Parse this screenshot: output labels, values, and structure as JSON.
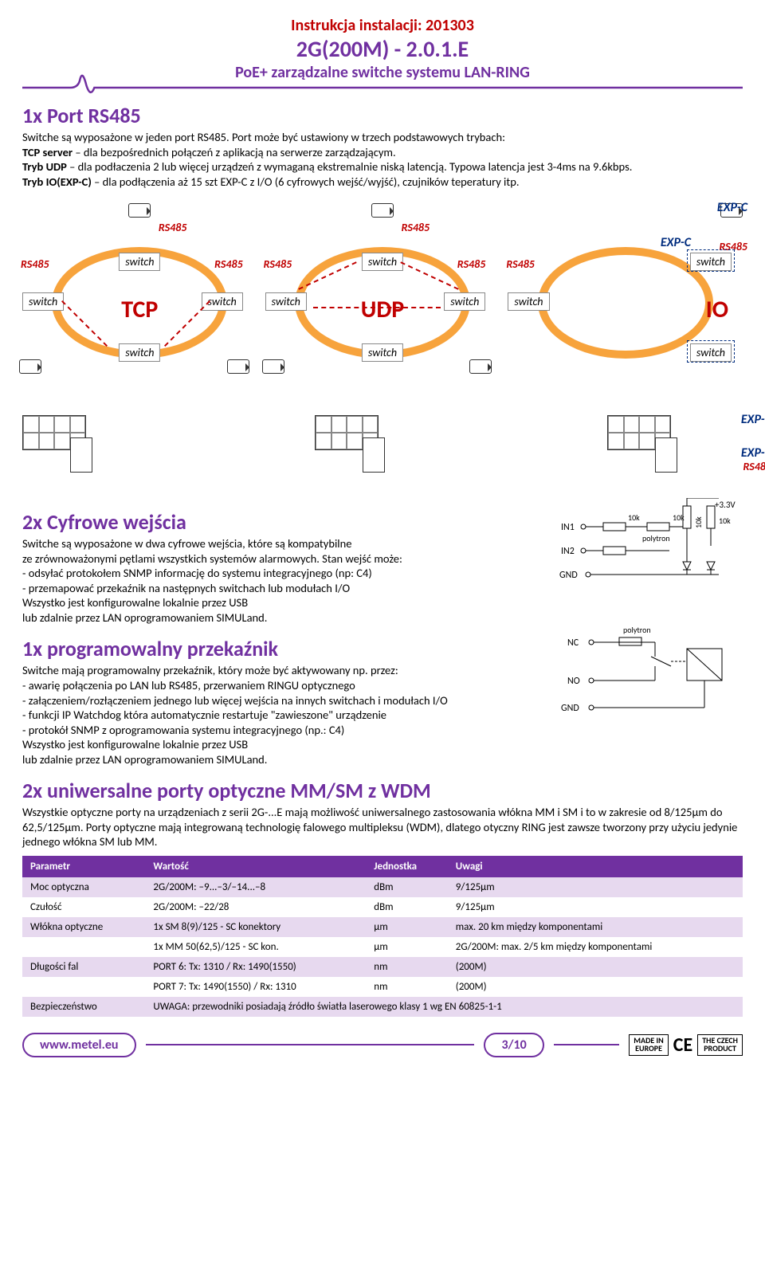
{
  "header": {
    "line1": "Instrukcja instalacji: 201303",
    "line2": "2G(200M) - 2.0.1.E",
    "line3": "PoE+ zarządzalne switche systemu LAN-RING"
  },
  "sec1": {
    "title": "1x Port RS485",
    "p1": "Switche są wyposażone w jeden port RS485. Port może być ustawiony w trzech podstawowych trybach:",
    "b1": "TCP server",
    "t1": " – dla bezpośrednich połączeń z aplikacją na serwerze zarządzającym.",
    "b2": "Tryb UDP",
    "t2": " – dla podłaczenia 2 lub więcej urządzeń z wymaganą ekstremalnie niską latencją. Typowa latencja jest 3-4ms na 9.6kbps.",
    "b3": "Tryb IO(EXP-C)",
    "t3": " – dla podłączenia aż 15 szt EXP-C z I/O (6 cyfrowych wejść/wyjść), czujników teperatury itp."
  },
  "rings": {
    "switch_label": "switch",
    "rs485": "RS485",
    "expc": "EXP-C",
    "proto": [
      "TCP",
      "UDP",
      "IO"
    ],
    "colors": {
      "ring": "#f7a33c",
      "rs485": "#c00000",
      "expc": "#002c7e",
      "heading": "#7030a0"
    }
  },
  "sec2": {
    "title": "2x Cyfrowe wejścia",
    "lines": [
      "Switche są wyposażone w dwa cyfrowe wejścia, które są kompatybilne",
      "ze zrównoważonymi pętlami wszystkich systemów alarmowych. Stan wejść może:",
      "- odsyłać protokołem SNMP informację do systemu integracyjnego (np: C4)",
      "- przemapować przekaźnik na następnych switchach lub modułach I/O",
      "Wszystko jest konfigurowalne lokalnie przez USB",
      "lub zdalnie przez LAN oprogramowaniem SIMULand."
    ],
    "circuit": {
      "in1": "IN1",
      "in2": "IN2",
      "gnd": "GND",
      "v": "+3.3V",
      "r1": "10k",
      "r2": "10k",
      "r3": "10k",
      "r4": "10k",
      "poly": "polytron"
    }
  },
  "sec3": {
    "title": "1x programowalny przekaźnik",
    "lines": [
      "Switche mają programowalny przekaźnik, który może być aktywowany np. przez:",
      "- awarię połączenia po LAN lub RS485, przerwaniem RINGU optycznego",
      "- załączeniem/rozłączeniem jednego lub więcej wejścia na innych switchach i modułach I/O",
      "- funkcji IP Watchdog która automatycznie restartuje \"zawieszone\" urządzenie",
      "-  protokół SNMP z oprogramowania systemu integracyjnego (np.: C4)",
      "Wszystko jest konfigurowalne lokalnie przez USB",
      "lub zdalnie przez LAN oprogramowaniem SIMULand."
    ],
    "circuit": {
      "nc": "NC",
      "no": "NO",
      "gnd": "GND",
      "poly": "polytron"
    }
  },
  "sec4": {
    "title": "2x uniwersalne porty optyczne MM/SM z WDM",
    "para": "Wszystkie optyczne porty na urządzeniach z serii 2G-...E mają możliwość uniwersalnego zastosowania włókna MM i SM i to w zakresie od 8/125μm do 62,5/125μm. Porty optyczne mają integrowaną technologię falowego multipleksu (WDM), dlatego otyczny RING jest zawsze tworzony przy użyciu jedynie jednego włókna SM lub MM."
  },
  "table": {
    "headers": [
      "Parametr",
      "Wartość",
      "Jednostka",
      "Uwagi"
    ],
    "rows": [
      [
        "Moc optyczna",
        "2G/200M: –9...–3/–14...–8",
        "dBm",
        "9/125μm"
      ],
      [
        "Czułość",
        "2G/200M: –22/28",
        "dBm",
        "9/125μm"
      ],
      [
        "Włókna optyczne",
        "1x SM 8(9)/125 - SC konektory",
        "μm",
        "max. 20 km między komponentami"
      ],
      [
        "",
        "1x MM 50(62,5)/125 - SC kon.",
        "μm",
        "2G/200M: max. 2/5 km między komponentami"
      ],
      [
        "Długości fal",
        "PORT 6: Tx: 1310 / Rx: 1490(1550)",
        "nm",
        "(200M)"
      ],
      [
        "",
        "PORT 7: Tx: 1490(1550) / Rx: 1310",
        "nm",
        "(200M)"
      ],
      [
        "Bezpieczeństwo",
        "UWAGA: przewodniki  posiadają źródło światła laserowego klasy 1 wg EN 60825-1-1",
        "",
        ""
      ]
    ],
    "header_bg": "#7030a0",
    "row_alt_bg": "#e7d9ef"
  },
  "footer": {
    "url": "www.metel.eu",
    "page": "3/10",
    "badge1_l1": "MADE IN",
    "badge1_l2": "EUROPE",
    "ce": "CE",
    "badge2_l1": "THE CZECH",
    "badge2_l2": "PRODUCT"
  }
}
